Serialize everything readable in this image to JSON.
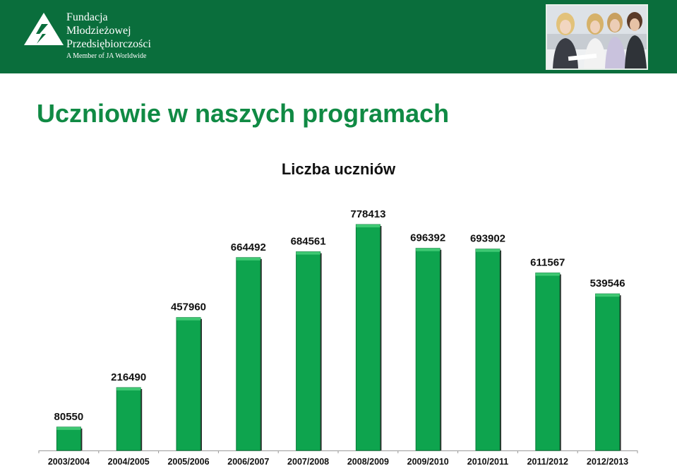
{
  "header": {
    "org_line1": "Fundacja",
    "org_line2": "Młodzieżowej",
    "org_line3": "Przedsiębiorczości",
    "tagline": "A Member of JA Worldwide",
    "brand_color": "#0a6e3c",
    "logo_icon": "triangle-logo-icon",
    "photo_icon": "students-photo"
  },
  "page": {
    "title": "Uczniowie w naszych programach"
  },
  "chart_data": {
    "type": "bar",
    "title": "Liczba uczniów",
    "xlabel": "",
    "ylabel": "",
    "categories": [
      "2003/2004",
      "2004/2005",
      "2005/2006",
      "2006/2007",
      "2007/2008",
      "2008/2009",
      "2009/2010",
      "2010/2011",
      "2011/2012",
      "2012/2013"
    ],
    "series": [
      {
        "values": [
          80550,
          216490,
          457960,
          664492,
          684561,
          778413,
          696392,
          693902,
          611567,
          539546
        ]
      }
    ],
    "ylim": [
      0,
      800000
    ],
    "grid": false,
    "legend": "none",
    "bar_color": "#0ea44e"
  }
}
